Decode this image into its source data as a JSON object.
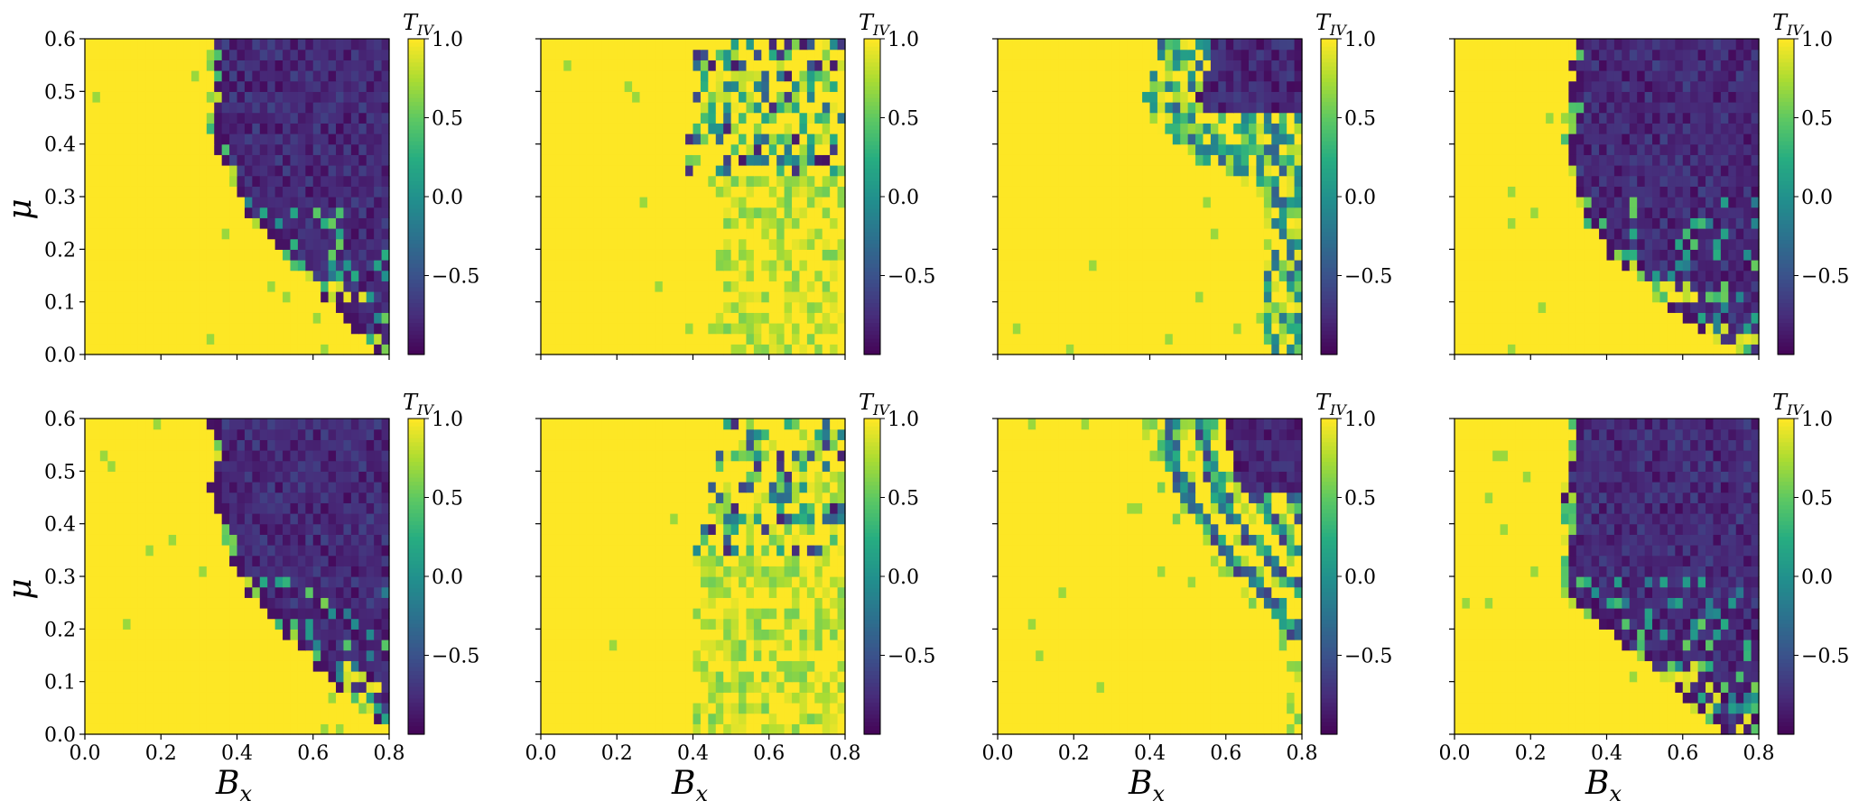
{
  "figure": {
    "colors": {
      "background": "#ffffff",
      "axis": "#000000"
    },
    "colormap": {
      "name": "viridis",
      "stops": [
        "#440154",
        "#472c7a",
        "#3b518b",
        "#2c718e",
        "#21908d",
        "#27ad81",
        "#5cc863",
        "#aadc32",
        "#fde725"
      ]
    }
  },
  "chart_data": [
    {
      "panel": "row1-col1",
      "type": "heatmap",
      "x_label": "",
      "y_label": "μ",
      "xlim": [
        0,
        0.8
      ],
      "ylim": [
        0,
        0.6
      ],
      "x_ticks": [
        "0.0",
        "0.2",
        "0.4",
        "0.6",
        "0.8"
      ],
      "y_ticks": [
        "0.0",
        "0.1",
        "0.2",
        "0.3",
        "0.4",
        "0.5",
        "0.6"
      ],
      "colorbar": {
        "label": "T_IV",
        "range": [
          -1,
          1
        ],
        "ticks": [
          "1.0",
          "0.5",
          "0.0",
          "−0.5"
        ]
      },
      "boundary": [
        [
          0.6,
          0.33
        ],
        [
          0.5,
          0.33
        ],
        [
          0.4,
          0.34
        ],
        [
          0.3,
          0.4
        ],
        [
          0.2,
          0.51
        ],
        [
          0.1,
          0.64
        ],
        [
          0.05,
          0.71
        ],
        [
          0.0,
          0.78
        ]
      ],
      "pattern": "dense",
      "noise": 0.1
    },
    {
      "panel": "row1-col2",
      "type": "heatmap",
      "x_label": "",
      "y_label": "",
      "xlim": [
        0,
        0.8
      ],
      "ylim": [
        0,
        0.6
      ],
      "x_ticks": [
        "0.0",
        "0.2",
        "0.4",
        "0.6",
        "0.8"
      ],
      "y_ticks": [],
      "colorbar": {
        "label": "T_IV",
        "range": [
          -1,
          1
        ],
        "ticks": [
          "1.0",
          "0.5",
          "0.0",
          "−0.5"
        ]
      },
      "boundary": [
        [
          0.6,
          0.4
        ],
        [
          0.5,
          0.4
        ],
        [
          0.4,
          0.38
        ],
        [
          0.35,
          0.39
        ],
        [
          0.3,
          0.46
        ]
      ],
      "pattern": "sparse",
      "noise": 0.12
    },
    {
      "panel": "row1-col3",
      "type": "heatmap",
      "x_label": "",
      "y_label": "",
      "xlim": [
        0,
        0.8
      ],
      "ylim": [
        0,
        0.6
      ],
      "x_ticks": [
        "0.0",
        "0.2",
        "0.4",
        "0.6",
        "0.8"
      ],
      "y_ticks": [],
      "colorbar": {
        "label": "T_IV",
        "range": [
          -1,
          1
        ],
        "ticks": [
          "1.0",
          "0.5",
          "0.0",
          "−0.5"
        ]
      },
      "boundary": [
        [
          0.6,
          0.42
        ],
        [
          0.55,
          0.4
        ],
        [
          0.5,
          0.38
        ],
        [
          0.45,
          0.4
        ],
        [
          0.4,
          0.46
        ],
        [
          0.35,
          0.58
        ],
        [
          0.3,
          0.7
        ]
      ],
      "pattern": "band",
      "noise": 0.12
    },
    {
      "panel": "row1-col4",
      "type": "heatmap",
      "x_label": "",
      "y_label": "",
      "xlim": [
        0,
        0.8
      ],
      "ylim": [
        0,
        0.6
      ],
      "x_ticks": [
        "0.0",
        "0.2",
        "0.4",
        "0.6",
        "0.8"
      ],
      "y_ticks": [],
      "colorbar": {
        "label": "T_IV",
        "range": [
          -1,
          1
        ],
        "ticks": [
          "1.0",
          "0.5",
          "0.0",
          "−0.5"
        ]
      },
      "boundary": [
        [
          0.6,
          0.32
        ],
        [
          0.5,
          0.3
        ],
        [
          0.4,
          0.29
        ],
        [
          0.3,
          0.31
        ],
        [
          0.2,
          0.4
        ],
        [
          0.1,
          0.55
        ],
        [
          0.05,
          0.64
        ],
        [
          0.0,
          0.77
        ]
      ],
      "pattern": "dense",
      "noise": 0.08
    },
    {
      "panel": "row2-col1",
      "type": "heatmap",
      "x_label": "B_x",
      "y_label": "μ",
      "xlim": [
        0,
        0.8
      ],
      "ylim": [
        0,
        0.6
      ],
      "x_ticks": [
        "0.0",
        "0.2",
        "0.4",
        "0.6",
        "0.8"
      ],
      "y_ticks": [
        "0.0",
        "0.1",
        "0.2",
        "0.3",
        "0.4",
        "0.5",
        "0.6"
      ],
      "colorbar": {
        "label": "T_IV",
        "range": [
          -1,
          1
        ],
        "ticks": [
          "1.0",
          "0.5",
          "0.0",
          "−0.5"
        ]
      },
      "boundary": [
        [
          0.6,
          0.33
        ],
        [
          0.5,
          0.33
        ],
        [
          0.4,
          0.35
        ],
        [
          0.3,
          0.4
        ],
        [
          0.2,
          0.52
        ],
        [
          0.1,
          0.65
        ],
        [
          0.05,
          0.72
        ],
        [
          0.0,
          0.8
        ]
      ],
      "pattern": "dense",
      "noise": 0.1
    },
    {
      "panel": "row2-col2",
      "type": "heatmap",
      "x_label": "B_x",
      "y_label": "",
      "xlim": [
        0,
        0.8
      ],
      "ylim": [
        0,
        0.6
      ],
      "x_ticks": [
        "0.0",
        "0.2",
        "0.4",
        "0.6",
        "0.8"
      ],
      "y_ticks": [],
      "colorbar": {
        "label": "T_IV",
        "range": [
          -1,
          1
        ],
        "ticks": [
          "1.0",
          "0.5",
          "0.0",
          "−0.5"
        ]
      },
      "boundary": [
        [
          0.6,
          0.48
        ],
        [
          0.5,
          0.46
        ],
        [
          0.4,
          0.43
        ],
        [
          0.35,
          0.4
        ]
      ],
      "pattern": "sparse",
      "noise": 0.1
    },
    {
      "panel": "row2-col3",
      "type": "heatmap",
      "x_label": "B_x",
      "y_label": "",
      "xlim": [
        0,
        0.8
      ],
      "ylim": [
        0,
        0.6
      ],
      "x_ticks": [
        "0.0",
        "0.2",
        "0.4",
        "0.6",
        "0.8"
      ],
      "y_ticks": [],
      "colorbar": {
        "label": "T_IV",
        "range": [
          -1,
          1
        ],
        "ticks": [
          "1.0",
          "0.5",
          "0.0",
          "−0.5"
        ]
      },
      "boundary": [
        [
          0.6,
          0.38
        ],
        [
          0.5,
          0.4
        ],
        [
          0.4,
          0.48
        ],
        [
          0.3,
          0.6
        ],
        [
          0.2,
          0.72
        ],
        [
          0.15,
          0.76
        ]
      ],
      "pattern": "stripes",
      "noise": 0.08
    },
    {
      "panel": "row2-col4",
      "type": "heatmap",
      "x_label": "B_x",
      "y_label": "",
      "xlim": [
        0,
        0.8
      ],
      "ylim": [
        0,
        0.6
      ],
      "x_ticks": [
        "0.0",
        "0.2",
        "0.4",
        "0.6",
        "0.8"
      ],
      "y_ticks": [],
      "colorbar": {
        "label": "T_IV",
        "range": [
          -1,
          1
        ],
        "ticks": [
          "1.0",
          "0.5",
          "0.0",
          "−0.5"
        ]
      },
      "boundary": [
        [
          0.6,
          0.31
        ],
        [
          0.5,
          0.29
        ],
        [
          0.4,
          0.29
        ],
        [
          0.3,
          0.28
        ],
        [
          0.25,
          0.3
        ],
        [
          0.2,
          0.4
        ],
        [
          0.1,
          0.55
        ],
        [
          0.05,
          0.62
        ],
        [
          0.0,
          0.72
        ]
      ],
      "pattern": "dense",
      "noise": 0.08
    }
  ]
}
